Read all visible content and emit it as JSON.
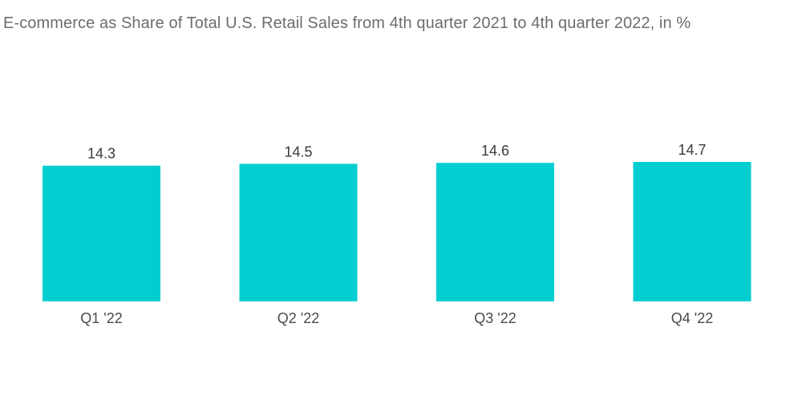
{
  "chart_data": {
    "type": "bar",
    "title": "E-commerce as Share of Total U.S. Retail Sales from 4th quarter 2021 to 4th quarter 2022, in %",
    "categories": [
      "Q1 '22",
      "Q2 '22",
      "Q3 '22",
      "Q4 '22"
    ],
    "values": [
      14.3,
      14.5,
      14.6,
      14.7
    ],
    "value_labels": [
      "14.3",
      "14.5",
      "14.6",
      "14.7"
    ],
    "xlabel": "",
    "ylabel": "",
    "ylim": [
      0,
      14.7
    ],
    "grid": false,
    "legend": "none",
    "bar_color": "#00ced1"
  }
}
